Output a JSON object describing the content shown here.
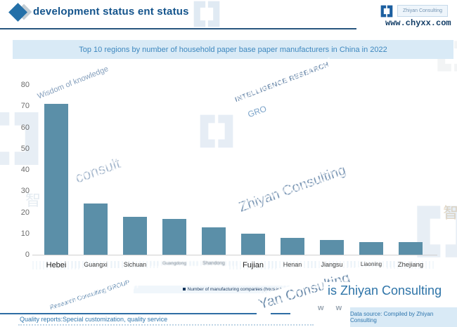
{
  "header": {
    "title": "development status ent status",
    "brand_label": "Zhiyan Consulting",
    "website": "www.chyxx.com"
  },
  "chart_data": {
    "type": "bar",
    "title": "Top 10 regions by number of household paper base paper manufacturers in China in 2022",
    "categories": [
      "Hebei",
      "Guangxi",
      "Sichuan",
      "Guangdong",
      "Shandong",
      "Fujian",
      "Henan",
      "Jiangsu",
      "Liaoning",
      "Zhejiang"
    ],
    "values": [
      71,
      24,
      18,
      17,
      13,
      10,
      8,
      7,
      6,
      6
    ],
    "title_position": "top-banner",
    "xlabel": "",
    "ylabel": "",
    "ylim": [
      0,
      80
    ],
    "yticks": [
      0,
      10,
      20,
      30,
      40,
      50,
      60,
      70,
      80
    ],
    "grid": false,
    "legend": [
      "Number of manufacturing companies (houses)"
    ],
    "legend_position": "bottom",
    "bar_color": "#5b8fa8"
  },
  "watermarks": {
    "wisdom": "Wisdom of knowledge",
    "intelligence": "INTELLIGENCE RESEARCH",
    "gro": "GRO",
    "consult": "consult",
    "zhiyan": "Zhiyan Consulting",
    "research_group": "Research Consulting GROUP",
    "yan": "Yan Consulting",
    "is_zhiyan": "is Zhiyan Consulting",
    "ww": "w w",
    "cn_char": "智"
  },
  "footer": {
    "quality_note": "Quality reports:Special customization, quality service",
    "data_source": "Data source: Compiled by Zhiyan Consulting"
  }
}
